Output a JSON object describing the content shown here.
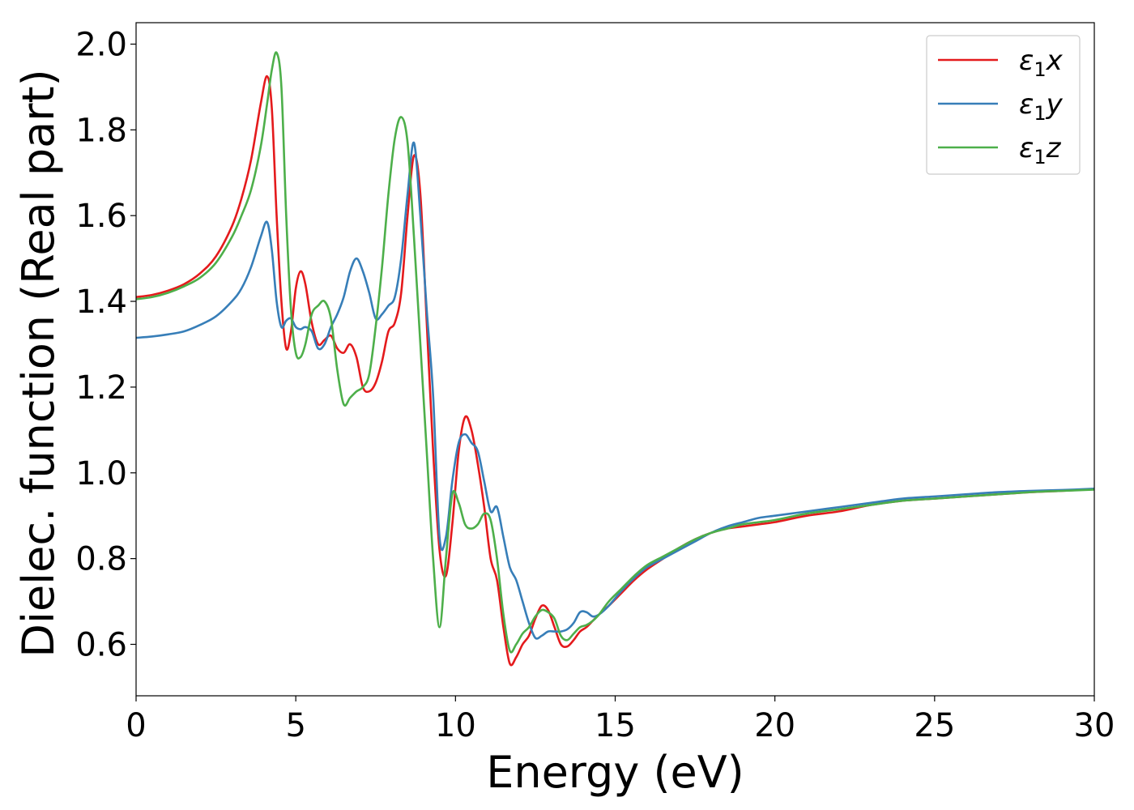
{
  "chart_data": {
    "type": "line",
    "title": "",
    "xlabel": "Energy (eV)",
    "ylabel": "Dielec. function (Real part)",
    "xlim": [
      0,
      30
    ],
    "ylim": [
      0.48,
      2.05
    ],
    "xticks": [
      0,
      5,
      10,
      15,
      20,
      25,
      30
    ],
    "xtick_labels": [
      "0",
      "5",
      "10",
      "15",
      "20",
      "25",
      "30"
    ],
    "yticks": [
      0.6,
      0.8,
      1.0,
      1.2,
      1.4,
      1.6,
      1.8,
      2.0
    ],
    "ytick_labels": [
      "0.6",
      "0.8",
      "1.0",
      "1.2",
      "1.4",
      "1.6",
      "1.8",
      "2.0"
    ],
    "grid": false,
    "legend_position": "top-right",
    "series": [
      {
        "name": "ε1x",
        "name_base": "ε",
        "name_sub": "1",
        "name_tail": "x",
        "color": "#e41a1c",
        "x": [
          0,
          0.5,
          1,
          1.5,
          2,
          2.5,
          3,
          3.3,
          3.6,
          3.9,
          4.1,
          4.25,
          4.4,
          4.55,
          4.7,
          4.85,
          5.0,
          5.15,
          5.3,
          5.5,
          5.7,
          5.9,
          6.1,
          6.3,
          6.5,
          6.7,
          6.9,
          7.1,
          7.3,
          7.5,
          7.7,
          7.9,
          8.1,
          8.3,
          8.5,
          8.7,
          8.9,
          9.1,
          9.3,
          9.5,
          9.7,
          9.9,
          10.1,
          10.3,
          10.5,
          10.7,
          10.9,
          11.1,
          11.3,
          11.5,
          11.7,
          11.9,
          12.1,
          12.3,
          12.5,
          12.7,
          12.9,
          13.1,
          13.3,
          13.5,
          13.7,
          13.9,
          14.1,
          14.3,
          14.5,
          14.8,
          15.2,
          15.6,
          16,
          16.5,
          17,
          17.5,
          18,
          18.5,
          19,
          19.5,
          20,
          21,
          22,
          23,
          24,
          25,
          26,
          27,
          28,
          29,
          30
        ],
        "values": [
          1.41,
          1.415,
          1.425,
          1.44,
          1.465,
          1.505,
          1.575,
          1.64,
          1.73,
          1.86,
          1.925,
          1.85,
          1.6,
          1.4,
          1.29,
          1.33,
          1.43,
          1.47,
          1.44,
          1.35,
          1.3,
          1.31,
          1.32,
          1.29,
          1.28,
          1.3,
          1.27,
          1.2,
          1.19,
          1.21,
          1.26,
          1.33,
          1.35,
          1.42,
          1.6,
          1.74,
          1.65,
          1.35,
          1.05,
          0.82,
          0.76,
          0.88,
          1.05,
          1.13,
          1.1,
          1.02,
          0.92,
          0.8,
          0.75,
          0.64,
          0.555,
          0.57,
          0.6,
          0.62,
          0.66,
          0.69,
          0.68,
          0.64,
          0.6,
          0.595,
          0.61,
          0.63,
          0.64,
          0.655,
          0.67,
          0.69,
          0.72,
          0.75,
          0.775,
          0.8,
          0.825,
          0.845,
          0.86,
          0.87,
          0.875,
          0.88,
          0.885,
          0.9,
          0.91,
          0.925,
          0.935,
          0.94,
          0.945,
          0.95,
          0.955,
          0.958,
          0.962
        ]
      },
      {
        "name": "ε1y",
        "name_base": "ε",
        "name_sub": "1",
        "name_tail": "y",
        "color": "#377eb8",
        "x": [
          0,
          0.5,
          1,
          1.5,
          2,
          2.5,
          3,
          3.3,
          3.6,
          3.9,
          4.1,
          4.25,
          4.4,
          4.55,
          4.7,
          4.85,
          5.0,
          5.15,
          5.3,
          5.5,
          5.7,
          5.9,
          6.1,
          6.3,
          6.5,
          6.7,
          6.9,
          7.1,
          7.3,
          7.5,
          7.7,
          7.9,
          8.1,
          8.3,
          8.5,
          8.7,
          8.9,
          9.1,
          9.3,
          9.5,
          9.7,
          9.9,
          10.1,
          10.3,
          10.5,
          10.7,
          10.9,
          11.1,
          11.3,
          11.5,
          11.7,
          11.9,
          12.1,
          12.3,
          12.5,
          12.7,
          12.9,
          13.1,
          13.3,
          13.5,
          13.7,
          13.9,
          14.1,
          14.3,
          14.5,
          14.8,
          15.2,
          15.6,
          16,
          16.5,
          17,
          17.5,
          18,
          18.5,
          19,
          19.5,
          20,
          20.5,
          21,
          22,
          23,
          24,
          25,
          26,
          27,
          28,
          29,
          30
        ],
        "values": [
          1.315,
          1.318,
          1.323,
          1.33,
          1.345,
          1.365,
          1.4,
          1.43,
          1.48,
          1.55,
          1.585,
          1.52,
          1.4,
          1.34,
          1.355,
          1.36,
          1.34,
          1.335,
          1.34,
          1.33,
          1.29,
          1.3,
          1.34,
          1.37,
          1.41,
          1.47,
          1.5,
          1.47,
          1.42,
          1.36,
          1.37,
          1.39,
          1.41,
          1.5,
          1.65,
          1.77,
          1.6,
          1.38,
          1.18,
          0.85,
          0.85,
          0.98,
          1.07,
          1.09,
          1.07,
          1.05,
          0.98,
          0.91,
          0.92,
          0.85,
          0.78,
          0.75,
          0.7,
          0.65,
          0.615,
          0.62,
          0.63,
          0.63,
          0.63,
          0.635,
          0.65,
          0.675,
          0.675,
          0.665,
          0.67,
          0.69,
          0.725,
          0.755,
          0.78,
          0.8,
          0.82,
          0.84,
          0.86,
          0.875,
          0.885,
          0.895,
          0.9,
          0.905,
          0.91,
          0.92,
          0.93,
          0.94,
          0.945,
          0.95,
          0.955,
          0.958,
          0.96,
          0.963
        ]
      },
      {
        "name": "ε1z",
        "name_base": "ε",
        "name_sub": "1",
        "name_tail": "z",
        "color": "#4daf4a",
        "x": [
          0,
          0.5,
          1,
          1.5,
          2,
          2.5,
          3,
          3.3,
          3.6,
          3.9,
          4.1,
          4.25,
          4.4,
          4.55,
          4.7,
          4.85,
          5.0,
          5.15,
          5.3,
          5.5,
          5.7,
          5.9,
          6.1,
          6.3,
          6.5,
          6.7,
          6.9,
          7.1,
          7.3,
          7.5,
          7.7,
          7.9,
          8.1,
          8.3,
          8.5,
          8.7,
          8.9,
          9.1,
          9.3,
          9.5,
          9.7,
          9.9,
          10.1,
          10.3,
          10.5,
          10.7,
          10.9,
          11.1,
          11.3,
          11.5,
          11.7,
          11.9,
          12.1,
          12.3,
          12.5,
          12.7,
          12.9,
          13.1,
          13.3,
          13.5,
          13.7,
          13.9,
          14.1,
          14.3,
          14.5,
          14.8,
          15.2,
          15.6,
          16,
          16.5,
          17,
          17.5,
          18,
          18.5,
          19,
          19.5,
          20,
          21,
          22,
          23,
          24,
          25,
          26,
          27,
          28,
          29,
          30
        ],
        "values": [
          1.405,
          1.41,
          1.42,
          1.435,
          1.455,
          1.49,
          1.55,
          1.6,
          1.66,
          1.76,
          1.86,
          1.94,
          1.98,
          1.9,
          1.6,
          1.38,
          1.28,
          1.27,
          1.3,
          1.37,
          1.39,
          1.4,
          1.36,
          1.24,
          1.16,
          1.175,
          1.19,
          1.2,
          1.23,
          1.34,
          1.48,
          1.65,
          1.78,
          1.83,
          1.77,
          1.55,
          1.3,
          1.05,
          0.8,
          0.64,
          0.8,
          0.95,
          0.93,
          0.88,
          0.87,
          0.88,
          0.905,
          0.89,
          0.8,
          0.67,
          0.585,
          0.6,
          0.625,
          0.64,
          0.665,
          0.68,
          0.675,
          0.66,
          0.62,
          0.61,
          0.625,
          0.64,
          0.645,
          0.655,
          0.67,
          0.7,
          0.73,
          0.76,
          0.785,
          0.805,
          0.825,
          0.845,
          0.86,
          0.87,
          0.88,
          0.885,
          0.89,
          0.905,
          0.915,
          0.925,
          0.935,
          0.94,
          0.945,
          0.95,
          0.955,
          0.958,
          0.961
        ]
      }
    ]
  }
}
